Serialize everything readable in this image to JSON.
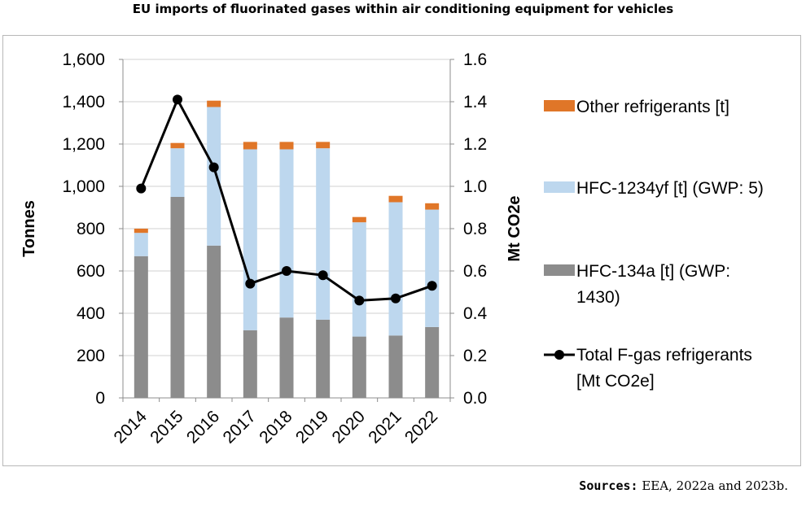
{
  "chart_data": {
    "type": "bar",
    "stacked": true,
    "title": "EU imports of fluorinated gases within air conditioning equipment for vehicles",
    "ylabel": "Tonnes",
    "y2label": "Mt CO2e",
    "ylim": [
      0,
      1600
    ],
    "y2lim": [
      0,
      1.6
    ],
    "yticks": [
      "0",
      "200",
      "400",
      "600",
      "800",
      "1,000",
      "1,200",
      "1,400",
      "1,600"
    ],
    "y2ticks": [
      "0.0",
      "0.2",
      "0.4",
      "0.6",
      "0.8",
      "1.0",
      "1.2",
      "1.4",
      "1.6"
    ],
    "categories": [
      "2014",
      "2015",
      "2016",
      "2017",
      "2018",
      "2019",
      "2020",
      "2021",
      "2022"
    ],
    "series": [
      {
        "name": "HFC-134a [t] (GWP: 1430)",
        "axis": "left",
        "color": "#8c8c8c",
        "values": [
          670,
          950,
          720,
          320,
          380,
          370,
          290,
          295,
          335
        ]
      },
      {
        "name": "HFC-1234yf [t] (GWP: 5)",
        "axis": "left",
        "color": "#bdd7ee",
        "values": [
          110,
          230,
          655,
          855,
          795,
          810,
          540,
          630,
          555
        ]
      },
      {
        "name": "Other refrigerants [t]",
        "axis": "left",
        "color": "#e07628",
        "values": [
          20,
          25,
          30,
          35,
          35,
          30,
          25,
          30,
          30
        ]
      },
      {
        "name": "Total F-gas refrigerants [Mt CO2e]",
        "axis": "right",
        "type": "line",
        "color": "#000000",
        "values": [
          0.99,
          1.41,
          1.09,
          0.54,
          0.6,
          0.58,
          0.46,
          0.47,
          0.53
        ]
      }
    ],
    "legend": {
      "position": "right",
      "items": [
        {
          "label_lines": [
            "Other refrigerants [t]"
          ],
          "kind": "box",
          "color": "#e07628"
        },
        {
          "label_lines": [
            "HFC-1234yf [t] (GWP: 5)"
          ],
          "kind": "box",
          "color": "#bdd7ee"
        },
        {
          "label_lines": [
            "HFC-134a [t] (GWP:",
            "1430)"
          ],
          "kind": "box",
          "color": "#8c8c8c"
        },
        {
          "label_lines": [
            "Total F-gas refrigerants",
            "[Mt CO2e]"
          ],
          "kind": "line",
          "color": "#000000"
        }
      ]
    },
    "grid": true
  },
  "source": {
    "label": "Sources:",
    "text": "EEA, 2022a and 2023b."
  }
}
